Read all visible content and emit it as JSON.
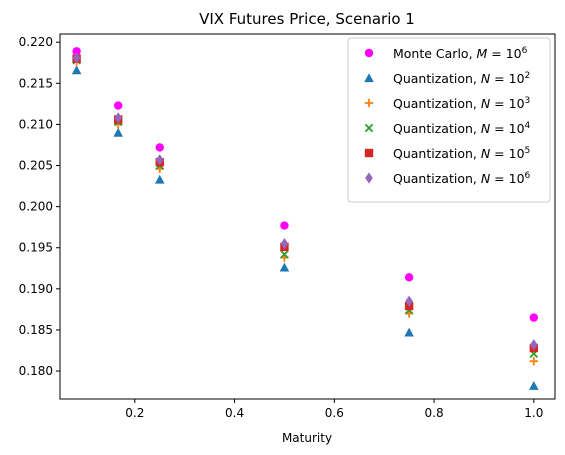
{
  "chart_data": {
    "type": "scatter",
    "title": "VIX Futures Price, Scenario 1",
    "xlabel": "Maturity",
    "ylabel": "",
    "xlim": [
      0.05,
      1.0425
    ],
    "ylim": [
      0.1766,
      0.221
    ],
    "xticks": [
      0.2,
      0.4,
      0.6,
      0.8,
      1.0
    ],
    "xtick_labels": [
      "0.2",
      "0.4",
      "0.6",
      "0.8",
      "1.0"
    ],
    "yticks": [
      0.18,
      0.185,
      0.19,
      0.195,
      0.2,
      0.205,
      0.21,
      0.215,
      0.22
    ],
    "ytick_labels": [
      "0.180",
      "0.185",
      "0.190",
      "0.195",
      "0.200",
      "0.205",
      "0.210",
      "0.215",
      "0.220"
    ],
    "grid": false,
    "legend_position": "top-right",
    "x": [
      0.0833,
      0.1667,
      0.25,
      0.5,
      0.75,
      1.0
    ],
    "series": [
      {
        "name_main": "Monte Carlo, ",
        "name_var": "M",
        "name_eq": " = 10",
        "name_exp": "6",
        "marker": "circle",
        "color": "#ff00ff",
        "values": [
          0.2189,
          0.2123,
          0.2072,
          0.1977,
          0.1914,
          0.1865
        ]
      },
      {
        "name_main": "Quantization, ",
        "name_var": "N",
        "name_eq": " = 10",
        "name_exp": "2",
        "marker": "triangle",
        "color": "#1f77b4",
        "values": [
          0.2166,
          0.209,
          0.2033,
          0.1926,
          0.1847,
          0.1782
        ]
      },
      {
        "name_main": "Quantization, ",
        "name_var": "N",
        "name_eq": " = 10",
        "name_exp": "3",
        "marker": "plus",
        "color": "#ff7f0e",
        "values": [
          0.2176,
          0.21,
          0.2046,
          0.1938,
          0.187,
          0.1812
        ]
      },
      {
        "name_main": "Quantization, ",
        "name_var": "N",
        "name_eq": " = 10",
        "name_exp": "4",
        "marker": "x",
        "color": "#2ca02c",
        "values": [
          0.2178,
          0.2103,
          0.205,
          0.1942,
          0.1874,
          0.1821
        ]
      },
      {
        "name_main": "Quantization, ",
        "name_var": "N",
        "name_eq": " = 10",
        "name_exp": "5",
        "marker": "square",
        "color": "#d62728",
        "values": [
          0.218,
          0.2106,
          0.2054,
          0.1951,
          0.1879,
          0.1828
        ]
      },
      {
        "name_main": "Quantization, ",
        "name_var": "N",
        "name_eq": " = 10",
        "name_exp": "6",
        "marker": "diamond",
        "color": "#9467bd",
        "values": [
          0.2181,
          0.2108,
          0.2057,
          0.1955,
          0.1885,
          0.1832
        ]
      }
    ]
  }
}
